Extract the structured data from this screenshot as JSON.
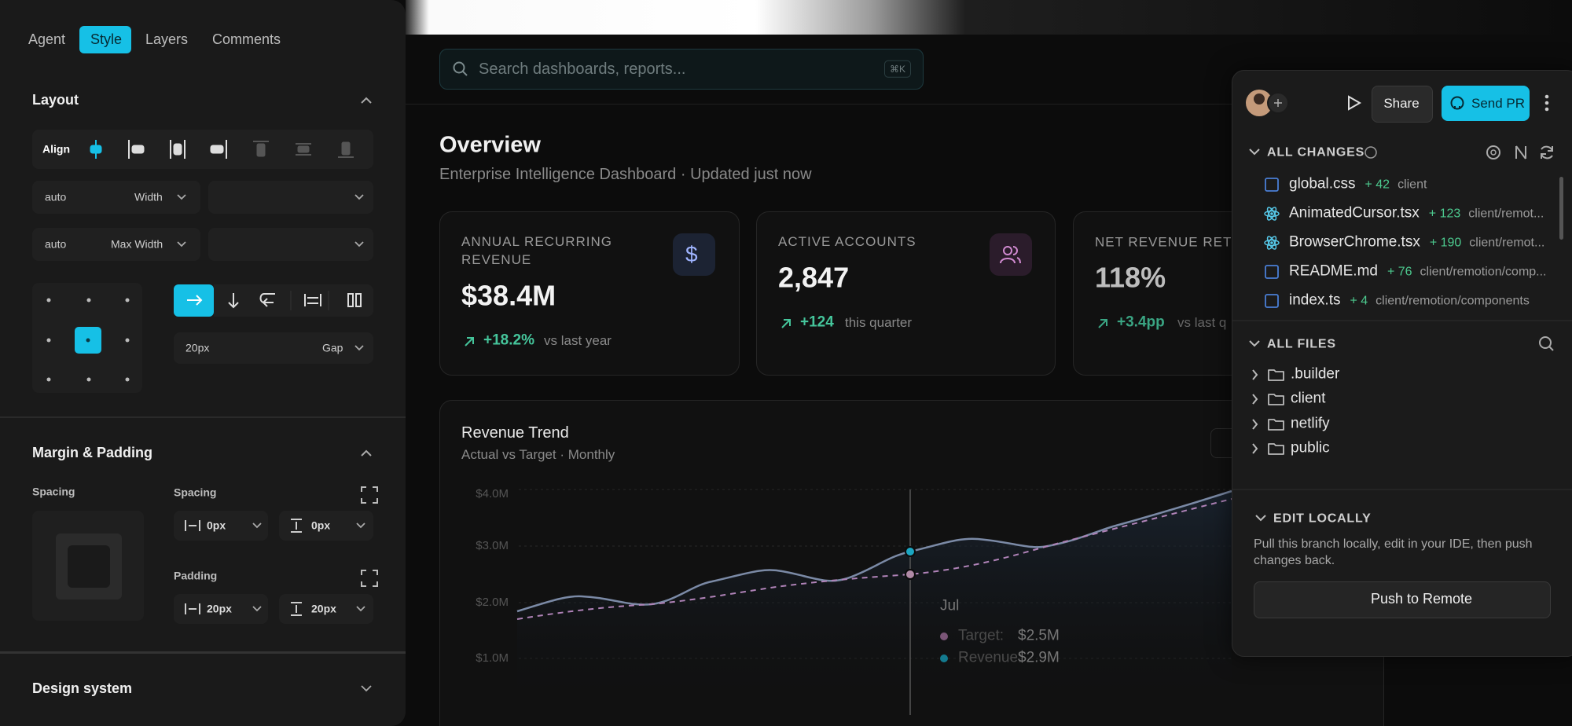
{
  "left_panel": {
    "tabs": [
      "Agent",
      "Style",
      "Layers",
      "Comments"
    ],
    "layout": {
      "title": "Layout",
      "align_label": "Align",
      "width": {
        "value": "auto",
        "label": "Width"
      },
      "max_width": {
        "value": "auto",
        "label": "Max Width"
      },
      "gap": {
        "value": "20px",
        "label": "Gap"
      }
    },
    "margin_padding": {
      "title": "Margin & Padding",
      "spacing_label": "Spacing",
      "spacing_title": "Spacing",
      "spacing_values": [
        "0px",
        "0px"
      ],
      "padding_title": "Padding",
      "padding_values": [
        "20px",
        "20px"
      ]
    },
    "design_system": {
      "title": "Design system"
    }
  },
  "main": {
    "search": {
      "placeholder": "Search dashboards, reports...",
      "shortcut": "⌘K"
    },
    "header": {
      "title": "Overview",
      "subtitle": "Enterprise Intelligence Dashboard · Updated just now"
    },
    "cards": [
      {
        "label": "ANNUAL RECURRING REVENUE",
        "value": "$38.4M",
        "delta": "+18.2%",
        "note": "vs last year"
      },
      {
        "label": "ACTIVE ACCOUNTS",
        "value": "2,847",
        "delta": "+124",
        "note": "this quarter"
      },
      {
        "label": "NET REVENUE RETE",
        "value": "118%",
        "delta": "+3.4pp",
        "note": "vs last q"
      }
    ],
    "chart": {
      "title": "Revenue Trend",
      "subtitle": "Actual vs Target · Monthly",
      "y_labels": [
        "$4.0M",
        "$3.0M",
        "$2.0M",
        "$1.0M"
      ],
      "tooltip": {
        "month": "Jul",
        "rows": [
          {
            "name": "Target:",
            "value": "$2.5M"
          },
          {
            "name": "Revenue:",
            "value": "$2.9M"
          }
        ]
      }
    }
  },
  "right_panel": {
    "share": "Share",
    "send_pr": "Send PR",
    "changes": {
      "title": "ALL CHANGES",
      "files": [
        {
          "name": "global.css",
          "added": "+ 42",
          "path": "client"
        },
        {
          "name": "AnimatedCursor.tsx",
          "added": "+ 123",
          "path": "client/remot..."
        },
        {
          "name": "BrowserChrome.tsx",
          "added": "+ 190",
          "path": "client/remot..."
        },
        {
          "name": "README.md",
          "added": "+ 76",
          "path": "client/remotion/comp..."
        },
        {
          "name": "index.ts",
          "added": "+ 4",
          "path": "client/remotion/components"
        }
      ]
    },
    "files": {
      "title": "ALL FILES",
      "folders": [
        ".builder",
        "client",
        "netlify",
        "public"
      ]
    },
    "edit_locally": {
      "title": "EDIT LOCALLY",
      "description": "Pull this branch locally, edit in your IDE, then push changes back.",
      "button": "Push to Remote"
    }
  }
}
